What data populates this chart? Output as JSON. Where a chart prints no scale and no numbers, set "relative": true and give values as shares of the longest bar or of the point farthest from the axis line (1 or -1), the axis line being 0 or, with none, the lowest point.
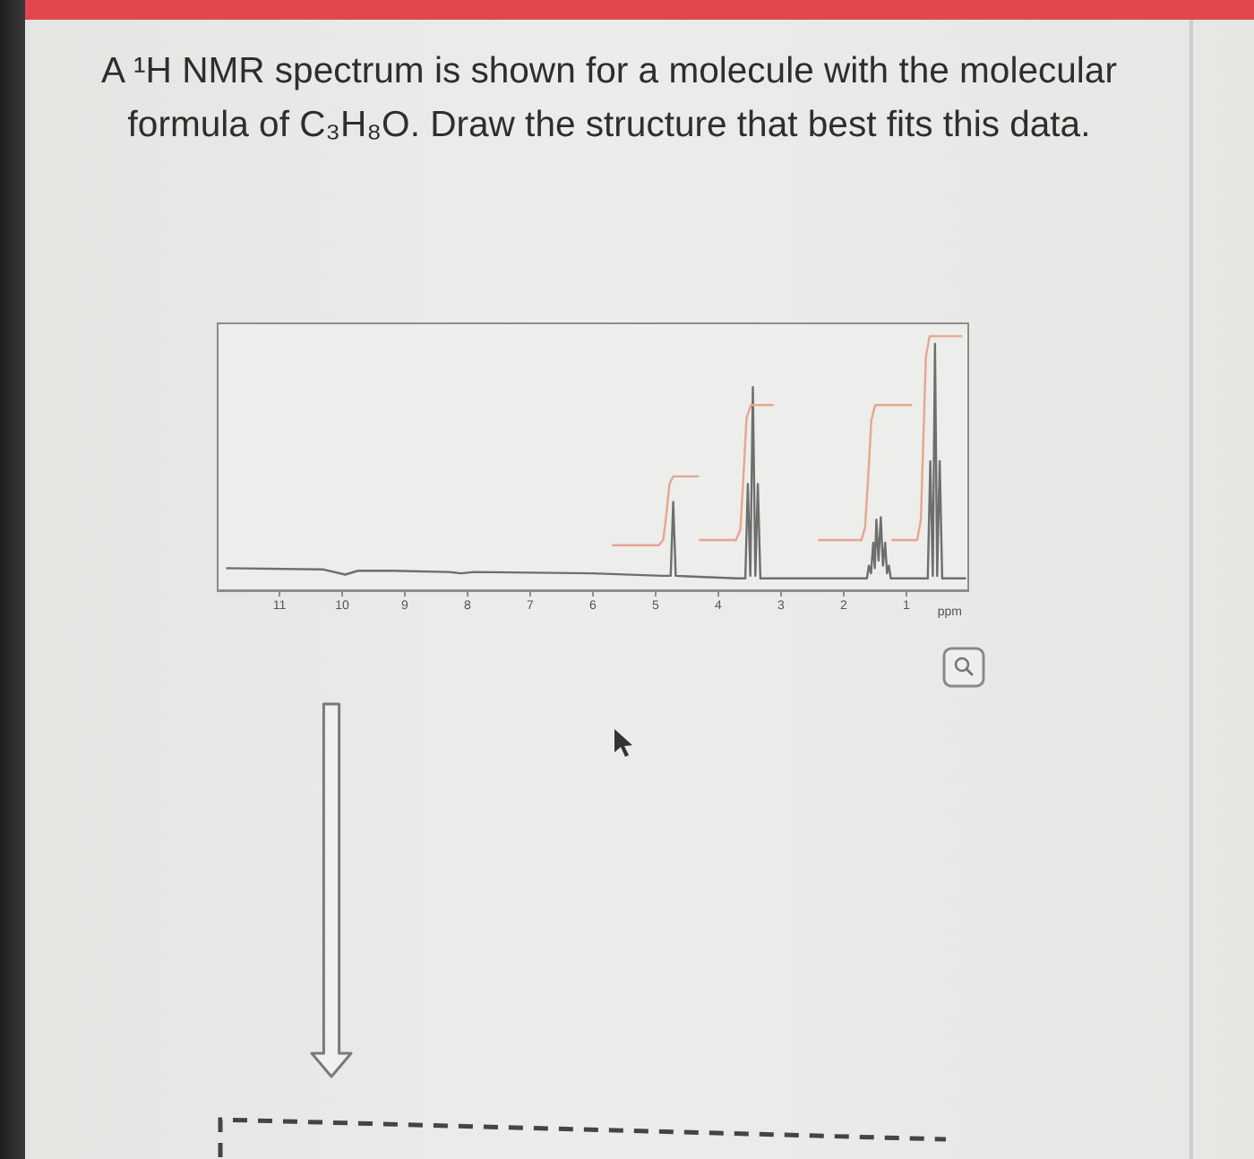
{
  "chart_data": {
    "type": "line",
    "title": "A ¹H NMR spectrum is shown for a molecule with the molecular formula of C₃H₈O. Draw the structure that best fits this data.",
    "xlabel": "ppm",
    "relative": true,
    "xlim": [
      12,
      0
    ],
    "xticks": [
      11,
      10,
      9,
      8,
      7,
      6,
      5,
      4,
      3,
      2,
      1
    ],
    "series": [
      {
        "color": "#6e6e6e",
        "x": [
          11.85,
          10.3,
          9.95,
          9.75,
          9.2,
          8.3,
          8.1,
          7.9,
          6,
          4.9,
          4.76,
          4.72,
          4.68,
          3.7,
          3.57,
          3.53,
          3.49,
          3.45,
          3.41,
          3.37,
          3.33,
          1.7,
          1.63,
          1.6,
          1.565,
          1.53,
          1.505,
          1.48,
          1.445,
          1.41,
          1.375,
          1.34,
          1.31,
          1.28,
          1.25,
          0.75,
          0.66,
          0.62,
          0.58,
          0.545,
          0.51,
          0.47,
          0.43,
          0.05
        ],
        "values": [
          0.09,
          0.085,
          0.065,
          0.08,
          0.08,
          0.075,
          0.07,
          0.075,
          0.07,
          0.06,
          0.06,
          0.35,
          0.06,
          0.05,
          0.05,
          0.42,
          0.06,
          0.8,
          0.06,
          0.42,
          0.05,
          0.05,
          0.05,
          0.1,
          0.07,
          0.19,
          0.09,
          0.28,
          0.12,
          0.29,
          0.1,
          0.19,
          0.07,
          0.1,
          0.05,
          0.05,
          0.05,
          0.51,
          0.06,
          0.97,
          0.06,
          0.51,
          0.05,
          0.05
        ]
      },
      {
        "color": "#e8a58e",
        "x": [
          5.7,
          4.95,
          4.88,
          4.83,
          4.78,
          4.72,
          4.31
        ],
        "values": [
          0.18,
          0.18,
          0.2,
          0.3,
          0.42,
          0.45,
          0.45
        ]
      },
      {
        "color": "#e8a58e",
        "x": [
          4.31,
          3.72,
          3.65,
          3.6,
          3.55,
          3.48,
          3.12
        ],
        "values": [
          0.2,
          0.2,
          0.24,
          0.45,
          0.68,
          0.73,
          0.73
        ]
      },
      {
        "color": "#e8a58e",
        "x": [
          2.41,
          1.72,
          1.66,
          1.61,
          1.56,
          1.5,
          0.91
        ],
        "values": [
          0.2,
          0.2,
          0.25,
          0.45,
          0.67,
          0.73,
          0.73
        ]
      },
      {
        "color": "#e8a58e",
        "x": [
          1.24,
          0.83,
          0.77,
          0.73,
          0.69,
          0.63,
          0.11
        ],
        "values": [
          0.2,
          0.2,
          0.28,
          0.6,
          0.92,
          1.0,
          1.0
        ]
      }
    ]
  }
}
